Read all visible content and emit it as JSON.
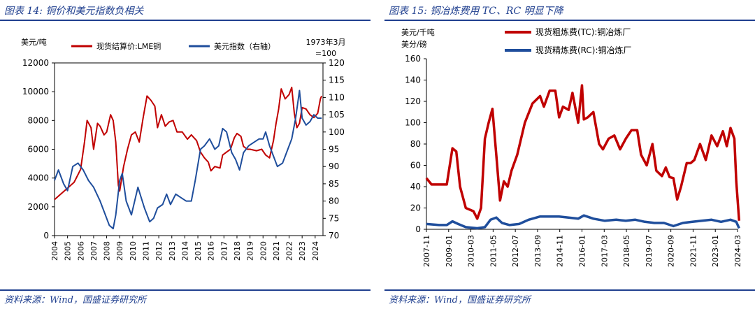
{
  "charts": [
    {
      "title": "图表 14:  铜价和美元指数负相关",
      "source": "资料来源：Wind，国盛证券研究所",
      "y_unit": "美元/吨",
      "y2_unit_line1": "1973年3月",
      "y2_unit_line2": "=100"
    },
    {
      "title": "图表 15:  铜冶炼费用 TC、RC 明显下降",
      "source": "资料来源：Wind，国盛证券研究所",
      "y_unit_line1": "美元/千吨",
      "y_unit_line2": "美分/磅"
    }
  ],
  "chart_data": [
    {
      "type": "line",
      "title": "铜价和美元指数负相关",
      "xlabel": "",
      "ylabel": "美元/吨",
      "y2label": "1973年3月=100",
      "ylim": [
        0,
        12000
      ],
      "y2lim": [
        70,
        120
      ],
      "yticks": [
        0,
        2000,
        4000,
        6000,
        8000,
        10000,
        12000
      ],
      "y2ticks": [
        70,
        75,
        80,
        85,
        90,
        95,
        100,
        105,
        110,
        115,
        120
      ],
      "xlim": [
        2004,
        2024.6
      ],
      "xticks": [
        "2004",
        "2005",
        "2006",
        "2007",
        "2008",
        "2009",
        "2010",
        "2011",
        "2012",
        "2013",
        "2014",
        "2015",
        "2016",
        "2017",
        "2018",
        "2019",
        "2020",
        "2021",
        "2022",
        "2023",
        "2024"
      ],
      "legend_position": "top",
      "series": [
        {
          "name": "现货结算价:LME铜",
          "axis": "left",
          "color": "#c00000",
          "x": [
            2004,
            2004.5,
            2005,
            2005.5,
            2006,
            2006.3,
            2006.5,
            2006.8,
            2007,
            2007.3,
            2007.5,
            2007.8,
            2008,
            2008.3,
            2008.5,
            2008.7,
            2008.9,
            2009,
            2009.3,
            2009.6,
            2009.9,
            2010.2,
            2010.5,
            2010.8,
            2011.1,
            2011.4,
            2011.7,
            2011.9,
            2012.2,
            2012.5,
            2012.8,
            2013.1,
            2013.4,
            2013.8,
            2014.2,
            2014.5,
            2014.9,
            2015.2,
            2015.5,
            2015.8,
            2016,
            2016.3,
            2016.7,
            2016.9,
            2017.2,
            2017.5,
            2017.8,
            2018,
            2018.3,
            2018.5,
            2018.8,
            2019,
            2019.5,
            2019.9,
            2020.2,
            2020.5,
            2020.8,
            2021,
            2021.2,
            2021.4,
            2021.7,
            2022,
            2022.2,
            2022.4,
            2022.6,
            2022.8,
            2023,
            2023.3,
            2023.6,
            2023.9,
            2024.2,
            2024.4,
            2024.5
          ],
          "values": [
            2500,
            2900,
            3300,
            3700,
            4600,
            6500,
            8000,
            7500,
            6000,
            7800,
            7600,
            7000,
            7200,
            8400,
            8000,
            6500,
            3500,
            3100,
            4800,
            6000,
            7000,
            7200,
            6500,
            8200,
            9700,
            9400,
            9000,
            7500,
            8400,
            7600,
            7900,
            8000,
            7200,
            7200,
            6700,
            7000,
            6600,
            5800,
            5400,
            5100,
            4500,
            4800,
            4700,
            5600,
            5800,
            6000,
            6800,
            7100,
            6900,
            6200,
            6000,
            6000,
            5900,
            6000,
            5600,
            5400,
            6600,
            7800,
            8800,
            10200,
            9500,
            9800,
            10300,
            8500,
            7500,
            7800,
            8900,
            8800,
            8400,
            8200,
            8500,
            9500,
            9700
          ]
        },
        {
          "name": "美元指数（右轴）",
          "axis": "right",
          "color": "#1f4e9c",
          "x": [
            2004,
            2004.3,
            2004.7,
            2005,
            2005.4,
            2005.8,
            2006.2,
            2006.6,
            2007,
            2007.5,
            2007.9,
            2008.2,
            2008.5,
            2008.7,
            2009,
            2009.2,
            2009.5,
            2009.9,
            2010.4,
            2010.9,
            2011.3,
            2011.6,
            2011.9,
            2012.3,
            2012.6,
            2012.9,
            2013.3,
            2013.7,
            2014.1,
            2014.5,
            2014.8,
            2015.2,
            2015.5,
            2015.9,
            2016.3,
            2016.6,
            2016.9,
            2017.2,
            2017.6,
            2017.9,
            2018.2,
            2018.5,
            2018.9,
            2019.3,
            2019.7,
            2020,
            2020.2,
            2020.5,
            2020.8,
            2021.1,
            2021.5,
            2021.9,
            2022.2,
            2022.5,
            2022.8,
            2023,
            2023.3,
            2023.6,
            2023.9,
            2024.2,
            2024.5
          ],
          "values": [
            86,
            89,
            85,
            83,
            90,
            91,
            89,
            86,
            84,
            80,
            76,
            73,
            72,
            76,
            86,
            88,
            80,
            76,
            84,
            78,
            74,
            75,
            78,
            79,
            82,
            79,
            82,
            81,
            80,
            80,
            86,
            95,
            96,
            98,
            95,
            96,
            101,
            100,
            94,
            92,
            89,
            94,
            96,
            97,
            98,
            98,
            100,
            96,
            93,
            90,
            91,
            95,
            98,
            104,
            112,
            104,
            102,
            103,
            105,
            104,
            104
          ]
        }
      ]
    },
    {
      "type": "line",
      "title": "铜冶炼费用 TC、RC 明显下降",
      "xlabel": "",
      "ylabel": "美元/千吨; 美分/磅",
      "ylim": [
        0,
        160
      ],
      "yticks": [
        0,
        20,
        40,
        60,
        80,
        100,
        120,
        140,
        160
      ],
      "xlim": [
        "2007-11",
        "2024-03"
      ],
      "xticks": [
        "2007-11",
        "2009-01",
        "2010-03",
        "2011-05",
        "2012-07",
        "2013-09",
        "2014-11",
        "2016-01",
        "2017-03",
        "2018-05",
        "2019-07",
        "2020-09",
        "2021-11",
        "2023-01",
        "2024-03"
      ],
      "legend_position": "top",
      "series": [
        {
          "name": "现货粗炼费(TC):铜冶炼厂",
          "color": "#c00000",
          "x": [
            2007.83,
            2008.1,
            2008.4,
            2008.9,
            2009.2,
            2009.4,
            2009.6,
            2009.9,
            2010.3,
            2010.5,
            2010.7,
            2010.9,
            2011.1,
            2011.3,
            2011.5,
            2011.7,
            2011.9,
            2012.1,
            2012.3,
            2012.6,
            2013.0,
            2013.4,
            2013.8,
            2014.0,
            2014.3,
            2014.6,
            2014.8,
            2015.0,
            2015.3,
            2015.5,
            2015.8,
            2016.0,
            2016.1,
            2016.3,
            2016.6,
            2016.9,
            2017.1,
            2017.4,
            2017.7,
            2018.0,
            2018.3,
            2018.6,
            2018.9,
            2019.1,
            2019.4,
            2019.7,
            2019.9,
            2020.2,
            2020.4,
            2020.6,
            2020.8,
            2021.0,
            2021.2,
            2021.5,
            2021.7,
            2021.9,
            2022.2,
            2022.5,
            2022.8,
            2023.1,
            2023.4,
            2023.6,
            2023.8,
            2024.0,
            2024.1,
            2024.25
          ],
          "values": [
            48,
            42,
            42,
            42,
            76,
            73,
            40,
            20,
            17,
            10,
            20,
            85,
            100,
            113,
            70,
            27,
            45,
            40,
            55,
            70,
            100,
            118,
            125,
            115,
            130,
            130,
            105,
            115,
            112,
            128,
            100,
            135,
            103,
            105,
            110,
            80,
            75,
            85,
            88,
            75,
            85,
            93,
            93,
            70,
            60,
            80,
            55,
            50,
            58,
            49,
            48,
            28,
            40,
            62,
            62,
            65,
            80,
            65,
            88,
            78,
            92,
            78,
            95,
            85,
            45,
            8
          ]
        },
        {
          "name": "现货精炼费(RC):铜冶炼厂",
          "color": "#1f4e9c",
          "x": [
            2007.83,
            2008.5,
            2008.9,
            2009.2,
            2009.5,
            2009.9,
            2010.5,
            2010.9,
            2011.2,
            2011.5,
            2011.8,
            2012.2,
            2012.7,
            2013.2,
            2013.8,
            2014.3,
            2014.8,
            2015.3,
            2015.8,
            2016.1,
            2016.6,
            2017.2,
            2017.8,
            2018.3,
            2018.8,
            2019.3,
            2019.8,
            2020.3,
            2020.8,
            2021.3,
            2021.8,
            2022.3,
            2022.8,
            2023.3,
            2023.8,
            2024.1,
            2024.25
          ],
          "values": [
            5,
            4,
            4,
            7.5,
            5,
            2,
            1,
            2,
            9,
            11,
            6,
            4,
            5,
            9,
            12,
            12,
            12,
            11,
            10,
            13,
            10,
            8,
            9,
            8,
            9,
            7,
            6,
            6,
            3,
            6,
            7,
            8,
            9,
            7,
            9,
            7,
            1
          ]
        }
      ]
    }
  ]
}
